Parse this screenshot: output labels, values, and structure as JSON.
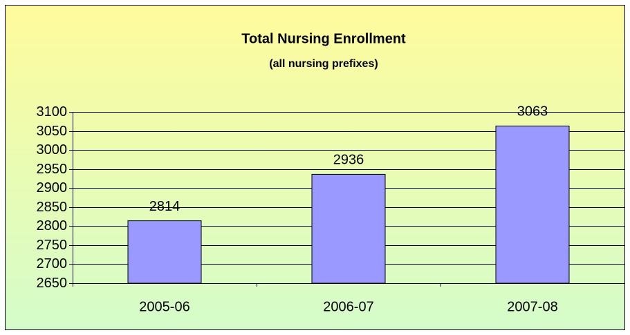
{
  "chart_data": {
    "type": "bar",
    "title": "Total Nursing Enrollment",
    "subtitle": "(all nursing prefixes)",
    "categories": [
      "2005-06",
      "2006-07",
      "2007-08"
    ],
    "values": [
      2814,
      2936,
      3063
    ],
    "color": "#9999ff",
    "ylim": [
      2650,
      3100
    ],
    "yticks": [
      2650,
      2700,
      2750,
      2800,
      2850,
      2900,
      2950,
      3000,
      3050,
      3100
    ],
    "grid": true
  }
}
